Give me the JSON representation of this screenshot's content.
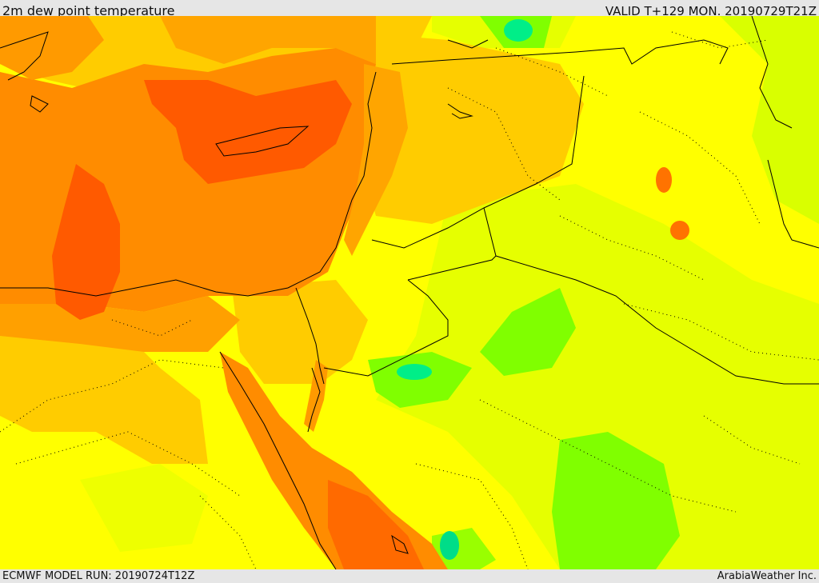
{
  "header": {
    "title": "2m dew point temperature",
    "valid": "VALID T+129 MON. 20190729T21Z"
  },
  "footer": {
    "model_run": "ECMWF MODEL RUN: 20190724T12Z",
    "credit": "ArabiaWeather Inc."
  },
  "colors": {
    "yellow": "#ffff00",
    "yellow_light": "#ffee00",
    "yellow_orange": "#ffcc00",
    "orange_light": "#ffb300",
    "orange": "#ff8c00",
    "orange_deep": "#ff7300",
    "red_orange": "#ff5a00",
    "lime": "#d4ff00",
    "green": "#80ff00",
    "teal": "#00ee88",
    "border_line": "#000000"
  }
}
